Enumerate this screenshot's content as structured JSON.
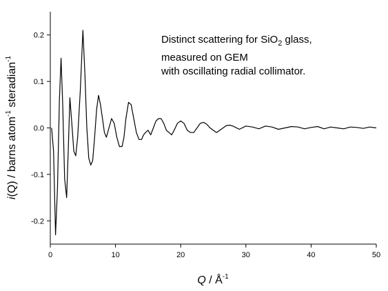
{
  "chart_data": {
    "type": "line",
    "title": "",
    "xlabel": {
      "symbol": "Q",
      "rest": " / Å",
      "sup": "-1"
    },
    "ylabel": {
      "symbol": "i",
      "rest1": "(Q) / barns atom",
      "sup1": "-1",
      "rest2": " steradian",
      "sup2": "-1"
    },
    "annotation": {
      "line1_pre": "Distinct scattering for SiO",
      "line1_sub": "2",
      "line1_post": " glass,",
      "line2": "measured on GEM",
      "line3": "with oscillating radial collimator."
    },
    "xlim": [
      0,
      50
    ],
    "ylim": [
      -0.25,
      0.25
    ],
    "x_ticks": [
      0,
      10,
      20,
      30,
      40,
      50
    ],
    "y_ticks": [
      -0.2,
      -0.1,
      0.0,
      0.1,
      0.2
    ],
    "x_tick_labels": [
      "0",
      "10",
      "20",
      "30",
      "40",
      "50"
    ],
    "y_tick_labels": [
      "-0.2",
      "-0.1",
      "0.0",
      "0.1",
      "0.2"
    ],
    "grid": false,
    "series": [
      {
        "color": "#000000",
        "x": [
          0.2,
          0.5,
          0.8,
          1.1,
          1.4,
          1.65,
          1.9,
          2.2,
          2.5,
          2.75,
          3.0,
          3.3,
          3.6,
          3.9,
          4.2,
          4.6,
          5.0,
          5.3,
          5.6,
          5.9,
          6.2,
          6.5,
          6.8,
          7.1,
          7.4,
          7.7,
          8.0,
          8.3,
          8.6,
          9.0,
          9.4,
          9.8,
          10.2,
          10.6,
          11.0,
          11.3,
          11.6,
          12.0,
          12.4,
          12.8,
          13.2,
          13.6,
          14.0,
          14.3,
          14.6,
          15.0,
          15.4,
          15.8,
          16.2,
          16.6,
          17.0,
          17.4,
          17.8,
          18.2,
          18.6,
          19.0,
          19.5,
          20.0,
          20.5,
          21.0,
          21.5,
          22.0,
          22.5,
          23.0,
          23.5,
          24.0,
          24.5,
          25.0,
          25.5,
          26.0,
          26.5,
          27.0,
          27.5,
          28.0,
          29.0,
          30.0,
          31.0,
          32.0,
          33.0,
          34.0,
          35.0,
          36.0,
          37.0,
          38.0,
          39.0,
          40.0,
          41.0,
          42.0,
          43.0,
          44.0,
          45.0,
          46.0,
          47.0,
          48.0,
          49.0,
          50.0
        ],
        "y": [
          0.0,
          -0.05,
          -0.23,
          -0.13,
          0.06,
          0.15,
          0.05,
          -0.11,
          -0.15,
          -0.05,
          0.065,
          0.01,
          -0.05,
          -0.06,
          -0.02,
          0.08,
          0.21,
          0.12,
          0.0,
          -0.065,
          -0.08,
          -0.07,
          -0.02,
          0.04,
          0.07,
          0.05,
          0.02,
          -0.01,
          -0.02,
          0.0,
          0.02,
          0.01,
          -0.02,
          -0.04,
          -0.04,
          -0.02,
          0.02,
          0.055,
          0.05,
          0.02,
          -0.01,
          -0.025,
          -0.025,
          -0.015,
          -0.01,
          -0.005,
          -0.015,
          0.0,
          0.015,
          0.02,
          0.02,
          0.01,
          -0.005,
          -0.01,
          -0.015,
          -0.005,
          0.01,
          0.015,
          0.01,
          -0.005,
          -0.01,
          -0.01,
          0.0,
          0.01,
          0.012,
          0.008,
          0.0,
          -0.005,
          -0.01,
          -0.005,
          0.0,
          0.005,
          0.006,
          0.004,
          -0.003,
          0.004,
          0.002,
          -0.002,
          0.004,
          0.002,
          -0.003,
          0.0,
          0.003,
          0.002,
          -0.002,
          0.001,
          0.003,
          -0.002,
          0.002,
          0.0,
          -0.002,
          0.002,
          0.001,
          -0.001,
          0.002,
          0.0
        ]
      }
    ]
  }
}
